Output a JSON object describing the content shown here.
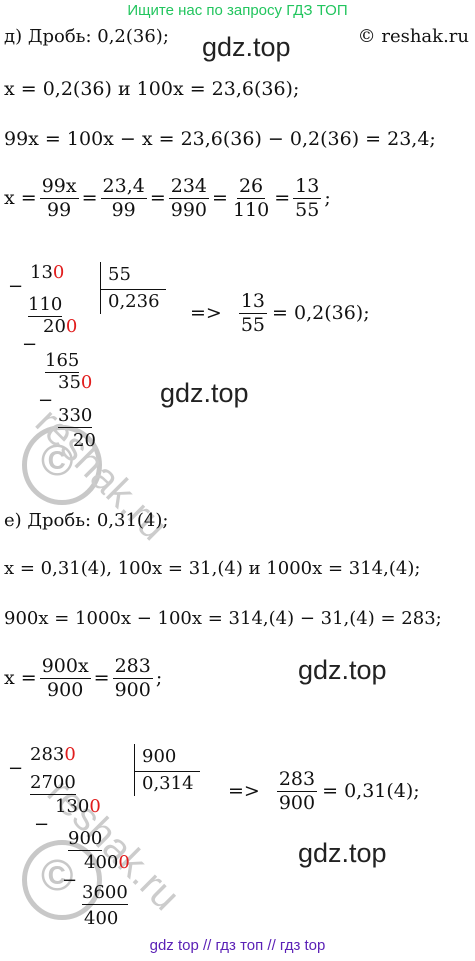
{
  "banner": "Ищите нас по запросу ГДЗ ТОП",
  "copyright": "© reshak.ru",
  "watermark": "gdz.top",
  "stamp_text": "reshak.ru",
  "stamp_symbol": "©",
  "footer": "gdz top  //  гдз топ  //  гдз top",
  "part_d": {
    "heading": "д) Дробь:  0,2(36);",
    "line1": "x = 0,2(36)  и  100x = 23,6(36);",
    "line2": "99x = 100x − x = 23,6(36) − 0,2(36) = 23,4;",
    "line3_lhs": "x =",
    "fracs": [
      {
        "num": "99x",
        "den": "99"
      },
      {
        "num": "23,4",
        "den": "99"
      },
      {
        "num": "234",
        "den": "990"
      },
      {
        "num": "26",
        "den": "110"
      },
      {
        "num": "13",
        "den": "55"
      }
    ],
    "line3_end": ";",
    "division": {
      "minus": "−",
      "dividend": "13",
      "dividend_red": "0",
      "divisor": "55",
      "quotient": "0,236",
      "s1": "110",
      "r1": "20",
      "r1_red": "0",
      "s2": "165",
      "r2": "35",
      "r2_red": "0",
      "s3": "330",
      "r3": "20"
    },
    "result_arrow": "=>",
    "result_frac": {
      "num": "13",
      "den": "55"
    },
    "result_tail": "= 0,2(36);"
  },
  "part_e": {
    "heading": "е) Дробь:  0,31(4);",
    "line1": "x = 0,31(4),   100x = 31,(4)  и  1000x = 314,(4);",
    "line2": "900x = 1000x − 100x = 314,(4) − 31,(4) = 283;",
    "line3_lhs": "x =",
    "fracs": [
      {
        "num": "900x",
        "den": "900"
      },
      {
        "num": "283",
        "den": "900"
      }
    ],
    "line3_end": ";",
    "division": {
      "minus": "−",
      "dividend": "283",
      "dividend_red": "0",
      "divisor": "900",
      "quotient": "0,314",
      "s1": "2700",
      "r1": "130",
      "r1_red": "0",
      "s2": "900",
      "r2": "400",
      "r2_red": "0",
      "s3": "3600",
      "r3": "400"
    },
    "result_arrow": "=>",
    "result_frac": {
      "num": "283",
      "den": "900"
    },
    "result_tail": "= 0,31(4);"
  }
}
